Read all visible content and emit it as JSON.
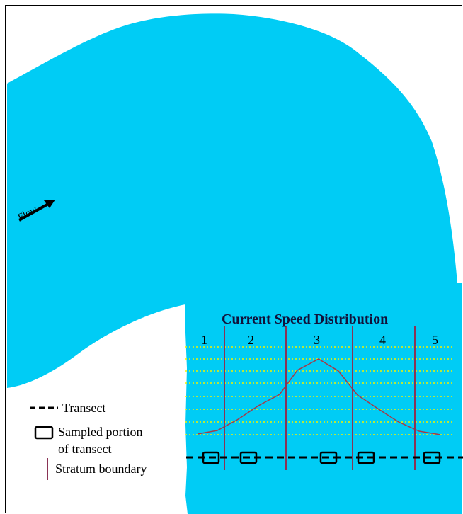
{
  "figure": {
    "title": "Current Speed Distribution",
    "strata": [
      "1",
      "2",
      "3",
      "4",
      "5"
    ],
    "flow_label": "Flow"
  },
  "legend": {
    "transect": "Transect",
    "sampled_line1": "Sampled portion",
    "sampled_line2": "of transect",
    "stratum_boundary": "Stratum boundary"
  },
  "colors": {
    "water": "#00ccf5",
    "boundary_line": "#8a3355",
    "speed_curve": "#a33b4a",
    "grid_dotted": "#f2f200",
    "transect": "#000000"
  }
}
